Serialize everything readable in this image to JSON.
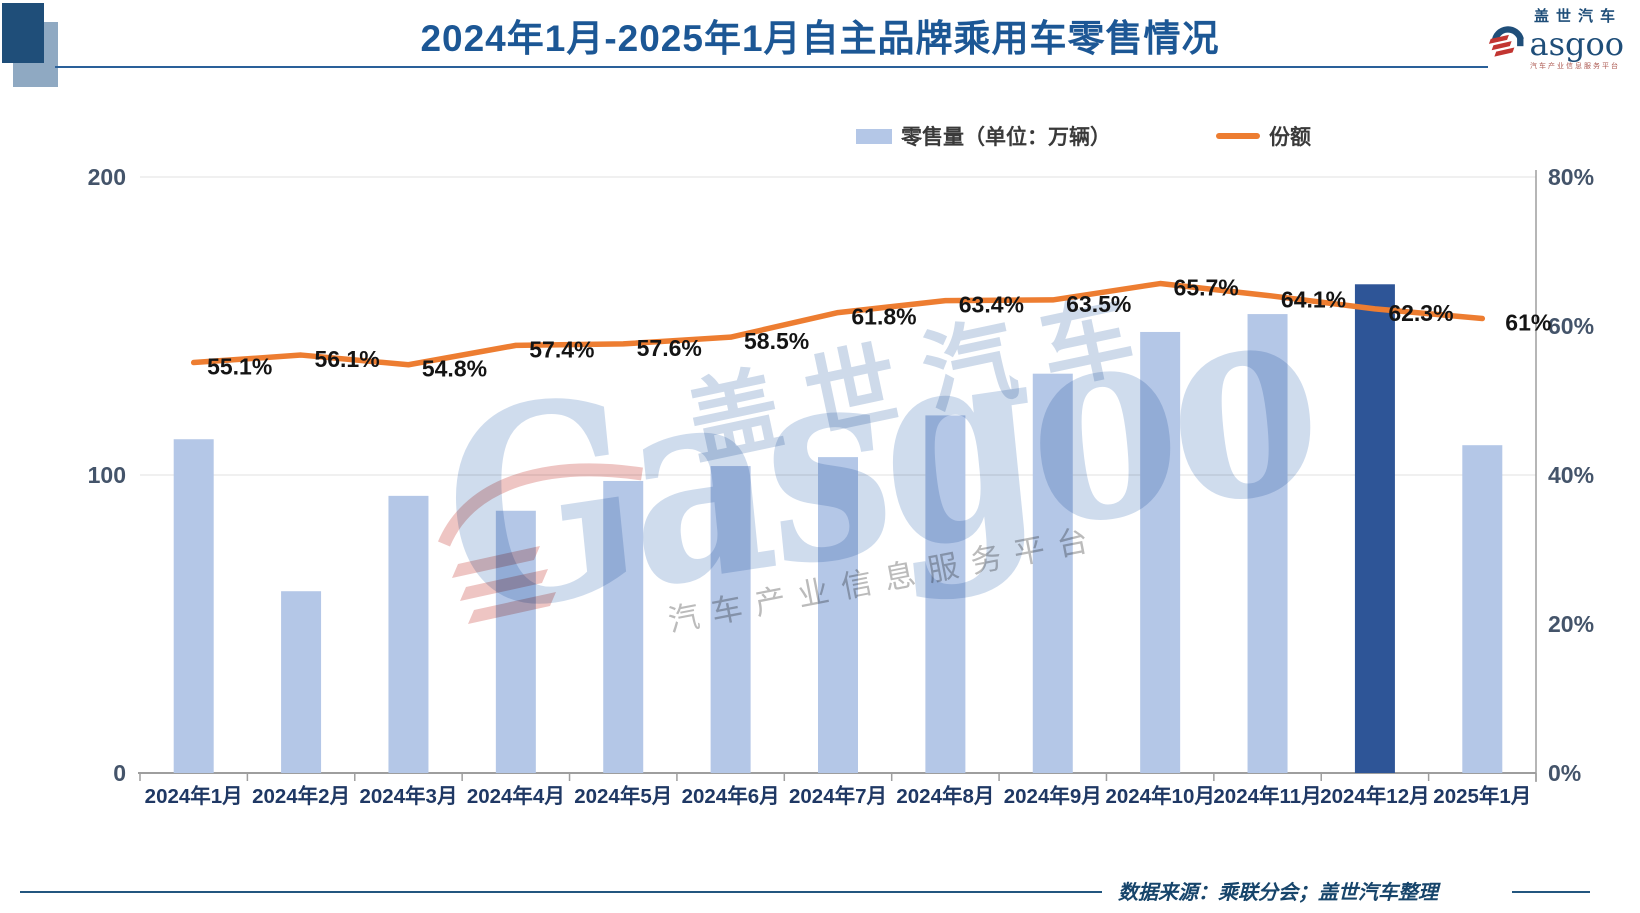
{
  "header": {
    "title": "2024年1月-2025年1月自主品牌乘用车零售情况",
    "logo": {
      "cn": "盖世汽车",
      "wordmark_rest": "asgoo",
      "slogan": "汽车产业信息服务平台"
    }
  },
  "legend": {
    "bar_label": "零售量（单位：万辆）",
    "line_label": "份额"
  },
  "watermark": {
    "cn": "盖世汽车",
    "en": "Gasgoo",
    "slogan": "汽车产业信息服务平台"
  },
  "footer": {
    "source": "数据来源：乘联分会；盖世汽车整理"
  },
  "colors": {
    "bar": "#B4C7E7",
    "bar_highlight": "#2E5597",
    "line": "#ED7D31",
    "title": "#1C5795",
    "y_axis_text": "#44546A",
    "x_axis_text": "#1F3864",
    "data_label": "#141414",
    "axis_line": "#9E9E9E",
    "gridline": "#E0E0E0"
  },
  "chart_data": {
    "type": "combo",
    "title": "2024年1月-2025年1月自主品牌乘用车零售情况",
    "categories": [
      "2024年1月",
      "2024年2月",
      "2024年3月",
      "2024年4月",
      "2024年5月",
      "2024年6月",
      "2024年7月",
      "2024年8月",
      "2024年9月",
      "2024年10月",
      "2024年11月",
      "2024年12月",
      "2025年1月"
    ],
    "series": [
      {
        "name": "零售量（单位：万辆）",
        "type": "bar",
        "unit": "万辆",
        "values": [
          112,
          61,
          93,
          88,
          98,
          103,
          106,
          120,
          134,
          148,
          154,
          164,
          110
        ],
        "highlight_index": 11
      },
      {
        "name": "份额",
        "type": "line",
        "values": [
          55.1,
          56.1,
          54.8,
          57.4,
          57.6,
          58.5,
          61.8,
          63.4,
          63.5,
          65.7,
          64.1,
          62.3,
          61
        ],
        "labels": [
          "55.1%",
          "56.1%",
          "54.8%",
          "57.4%",
          "57.6%",
          "58.5%",
          "61.8%",
          "63.4%",
          "63.5%",
          "65.7%",
          "64.1%",
          "62.3%",
          "61%"
        ]
      }
    ],
    "left_axis": {
      "min": 0,
      "max": 200,
      "ticks": [
        0,
        100,
        200
      ],
      "tick_labels": [
        "0",
        "100",
        "200"
      ]
    },
    "right_axis": {
      "min": 0,
      "max": 80,
      "ticks": [
        0,
        20,
        40,
        60,
        80
      ],
      "tick_labels": [
        "0%",
        "20%",
        "40%",
        "60%",
        "80%"
      ]
    },
    "grid": true,
    "legend_position": "top"
  }
}
